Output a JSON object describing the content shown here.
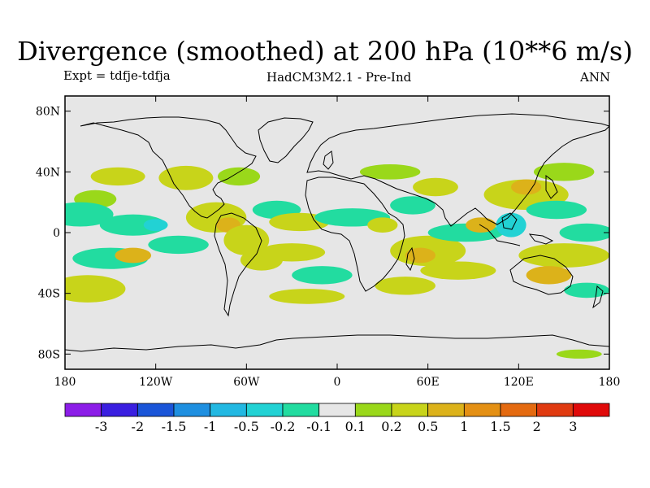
{
  "chart_data": {
    "type": "heatmap",
    "title": "Divergence (smoothed) at 200 hPa (10**6 m/s)",
    "subtitle_left": "Expt = tdfje-tdfja",
    "subtitle_center": "HadCM3M2.1 - Pre-Ind",
    "subtitle_right": "ANN",
    "xlim": [
      -180,
      180
    ],
    "ylim": [
      -90,
      90
    ],
    "x_ticks": [
      {
        "value": -180,
        "label": "180"
      },
      {
        "value": -120,
        "label": "120W"
      },
      {
        "value": -60,
        "label": "60W"
      },
      {
        "value": 0,
        "label": "0"
      },
      {
        "value": 60,
        "label": "60E"
      },
      {
        "value": 120,
        "label": "120E"
      },
      {
        "value": 180,
        "label": "180"
      }
    ],
    "y_ticks": [
      {
        "value": 80,
        "label": "80N"
      },
      {
        "value": 40,
        "label": "40N"
      },
      {
        "value": 0,
        "label": "0"
      },
      {
        "value": -40,
        "label": "40S"
      },
      {
        "value": -80,
        "label": "80S"
      }
    ],
    "colorbar": {
      "colors": [
        "#8c1de8",
        "#3a1fe0",
        "#1a55d8",
        "#1e8fe0",
        "#22b8e2",
        "#22d2d4",
        "#22dca0",
        "#e6e6e6",
        "#9ad81a",
        "#c8d41a",
        "#dcb21a",
        "#e49014",
        "#e46a10",
        "#e03a10",
        "#e00a0a"
      ],
      "labels": [
        "-3",
        "-2",
        "-1.5",
        "-1",
        "-0.5",
        "-0.2",
        "-0.1",
        "0.1",
        "0.2",
        "0.5",
        "1",
        "1.5",
        "2",
        "3"
      ]
    },
    "anomaly_features": [
      {
        "lon": -145,
        "lat": 37,
        "rlon": 18,
        "rlat": 6,
        "level": 2
      },
      {
        "lon": -160,
        "lat": 22,
        "rlon": 14,
        "rlat": 6,
        "level": 1
      },
      {
        "lon": -100,
        "lat": 36,
        "rlon": 18,
        "rlat": 8,
        "level": 2
      },
      {
        "lon": -65,
        "lat": 37,
        "rlon": 14,
        "rlat": 6,
        "level": 1
      },
      {
        "lon": -170,
        "lat": 12,
        "rlon": 22,
        "rlat": 8,
        "level": -1
      },
      {
        "lon": -135,
        "lat": 5,
        "rlon": 22,
        "rlat": 7,
        "level": -1
      },
      {
        "lon": -120,
        "lat": 5,
        "rlon": 8,
        "rlat": 4,
        "level": -2
      },
      {
        "lon": -105,
        "lat": -8,
        "rlon": 20,
        "rlat": 6,
        "level": -1
      },
      {
        "lon": -150,
        "lat": -17,
        "rlon": 25,
        "rlat": 7,
        "level": -1
      },
      {
        "lon": -165,
        "lat": -37,
        "rlon": 25,
        "rlat": 9,
        "level": 2
      },
      {
        "lon": -135,
        "lat": -15,
        "rlon": 12,
        "rlat": 5,
        "level": 3
      },
      {
        "lon": -80,
        "lat": 10,
        "rlon": 20,
        "rlat": 10,
        "level": 2
      },
      {
        "lon": -72,
        "lat": 5,
        "rlon": 8,
        "rlat": 5,
        "level": 3
      },
      {
        "lon": -60,
        "lat": -5,
        "rlon": 15,
        "rlat": 10,
        "level": 2
      },
      {
        "lon": -50,
        "lat": -18,
        "rlon": 14,
        "rlat": 7,
        "level": 2
      },
      {
        "lon": -40,
        "lat": 15,
        "rlon": 16,
        "rlat": 6,
        "level": -1
      },
      {
        "lon": -25,
        "lat": 7,
        "rlon": 20,
        "rlat": 6,
        "level": 2
      },
      {
        "lon": -30,
        "lat": -13,
        "rlon": 22,
        "rlat": 6,
        "level": 2
      },
      {
        "lon": -10,
        "lat": -28,
        "rlon": 20,
        "rlat": 6,
        "level": -1
      },
      {
        "lon": -20,
        "lat": -42,
        "rlon": 25,
        "rlat": 5,
        "level": 2
      },
      {
        "lon": 10,
        "lat": 10,
        "rlon": 25,
        "rlat": 6,
        "level": -1
      },
      {
        "lon": 30,
        "lat": 5,
        "rlon": 10,
        "rlat": 5,
        "level": 2
      },
      {
        "lon": 50,
        "lat": 18,
        "rlon": 15,
        "rlat": 6,
        "level": -1
      },
      {
        "lon": 35,
        "lat": 40,
        "rlon": 20,
        "rlat": 5,
        "level": 1
      },
      {
        "lon": 65,
        "lat": 30,
        "rlon": 15,
        "rlat": 6,
        "level": 2
      },
      {
        "lon": 60,
        "lat": -12,
        "rlon": 25,
        "rlat": 10,
        "level": 2
      },
      {
        "lon": 55,
        "lat": -15,
        "rlon": 10,
        "rlat": 5,
        "level": 3
      },
      {
        "lon": 85,
        "lat": 0,
        "rlon": 25,
        "rlat": 6,
        "level": -1
      },
      {
        "lon": 80,
        "lat": -25,
        "rlon": 25,
        "rlat": 6,
        "level": 2
      },
      {
        "lon": 45,
        "lat": -35,
        "rlon": 20,
        "rlat": 6,
        "level": 2
      },
      {
        "lon": 95,
        "lat": 5,
        "rlon": 10,
        "rlat": 5,
        "level": 3
      },
      {
        "lon": 115,
        "lat": 5,
        "rlon": 10,
        "rlat": 8,
        "level": -2
      },
      {
        "lon": 125,
        "lat": 25,
        "rlon": 28,
        "rlat": 10,
        "level": 2
      },
      {
        "lon": 125,
        "lat": 30,
        "rlon": 10,
        "rlat": 5,
        "level": 3
      },
      {
        "lon": 145,
        "lat": 15,
        "rlon": 20,
        "rlat": 6,
        "level": -1
      },
      {
        "lon": 150,
        "lat": 40,
        "rlon": 20,
        "rlat": 6,
        "level": 1
      },
      {
        "lon": 150,
        "lat": -15,
        "rlon": 30,
        "rlat": 8,
        "level": 2
      },
      {
        "lon": 140,
        "lat": -28,
        "rlon": 15,
        "rlat": 6,
        "level": 3
      },
      {
        "lon": 165,
        "lat": 0,
        "rlon": 18,
        "rlat": 6,
        "level": -1
      },
      {
        "lon": 165,
        "lat": -38,
        "rlon": 15,
        "rlat": 5,
        "level": -1
      },
      {
        "lon": 160,
        "lat": -80,
        "rlon": 15,
        "rlat": 3,
        "level": 1
      }
    ]
  }
}
